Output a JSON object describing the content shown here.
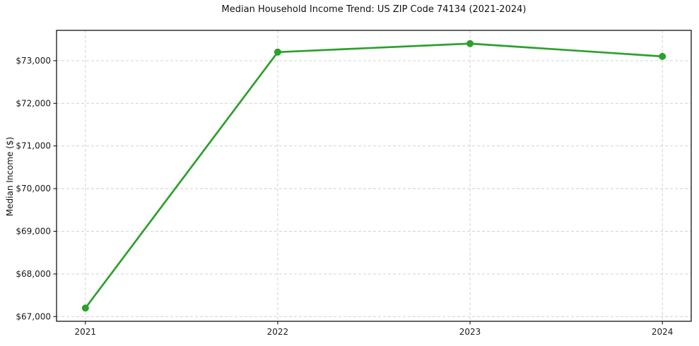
{
  "chart_data": {
    "type": "line",
    "title": "Median Household Income Trend: US ZIP Code 74134 (2021-2024)",
    "xlabel": "",
    "ylabel": "Median Income ($)",
    "x": [
      2021,
      2022,
      2023,
      2024
    ],
    "x_tick_labels": [
      "2021",
      "2022",
      "2023",
      "2024"
    ],
    "y_ticks": [
      67000,
      68000,
      69000,
      70000,
      71000,
      72000,
      73000
    ],
    "y_tick_labels": [
      "$67,000",
      "$68,000",
      "$69,000",
      "$70,000",
      "$71,000",
      "$72,000",
      "$73,000"
    ],
    "series": [
      {
        "values": [
          67200,
          73200,
          73400,
          73100
        ]
      }
    ],
    "xlim": [
      2020.85,
      2024.15
    ],
    "ylim": [
      66890,
      73710
    ],
    "grid": true,
    "grid_style": "dashed",
    "legend": "none",
    "colors": {
      "line": "#2ca02c",
      "marker": "#2ca02c",
      "grid": "#cccccc",
      "axis": "#000000",
      "tick_text": "#1a1a1a",
      "background": "#ffffff"
    },
    "line_width": 2.7,
    "marker_radius": 5
  }
}
